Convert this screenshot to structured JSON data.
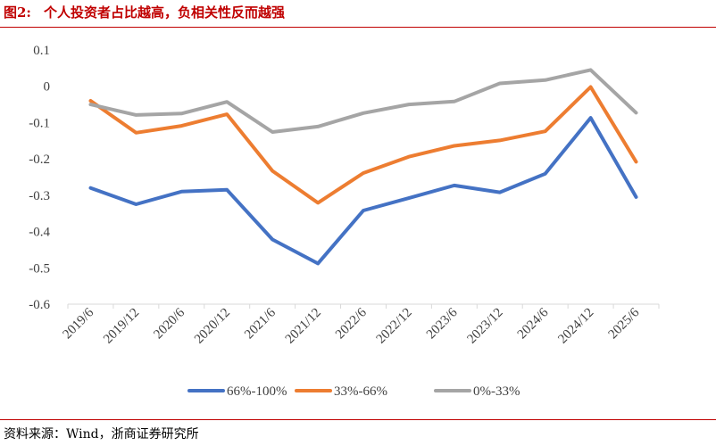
{
  "header": {
    "figure_label": "图2:",
    "figure_title": "个人投资者占比越高，负相关性反而越强"
  },
  "footer": {
    "source": "资料来源：Wind，浙商证券研究所"
  },
  "colors": {
    "title": "#c00000",
    "rule": "#c00000",
    "axis": "#d9d9d9",
    "text": "#404040"
  },
  "chart_data": {
    "type": "line",
    "title": "个人投资者占比越高，负相关性反而越强",
    "xlabel": "",
    "ylabel": "",
    "ylim": [
      -0.6,
      0.1
    ],
    "yticks": [
      0.1,
      0,
      -0.1,
      -0.2,
      -0.3,
      -0.4,
      -0.5,
      -0.6
    ],
    "ytick_labels": [
      "0.1",
      "0",
      "-0.1",
      "-0.2",
      "-0.3",
      "-0.4",
      "-0.5",
      "-0.6"
    ],
    "grid": false,
    "legend_position": "bottom",
    "categories": [
      "2019/6",
      "2019/12",
      "2020/6",
      "2020/12",
      "2021/6",
      "2021/12",
      "2022/6",
      "2022/12",
      "2023/6",
      "2023/12",
      "2024/6",
      "2024/12",
      "2025/6"
    ],
    "series": [
      {
        "name": "66%-100%",
        "color": "#4472c4",
        "values": [
          -0.28,
          -0.325,
          -0.29,
          -0.285,
          -0.422,
          -0.488,
          -0.342,
          -0.308,
          -0.273,
          -0.292,
          -0.241,
          -0.087,
          -0.305
        ]
      },
      {
        "name": "33%-66%",
        "color": "#ed7d31",
        "values": [
          -0.04,
          -0.128,
          -0.109,
          -0.077,
          -0.233,
          -0.321,
          -0.239,
          -0.194,
          -0.164,
          -0.149,
          -0.124,
          -0.002,
          -0.208
        ]
      },
      {
        "name": "0%-33%",
        "color": "#a5a5a5",
        "values": [
          -0.05,
          -0.079,
          -0.075,
          -0.043,
          -0.126,
          -0.111,
          -0.074,
          -0.05,
          -0.042,
          0.008,
          0.017,
          0.045,
          -0.073
        ]
      }
    ]
  }
}
